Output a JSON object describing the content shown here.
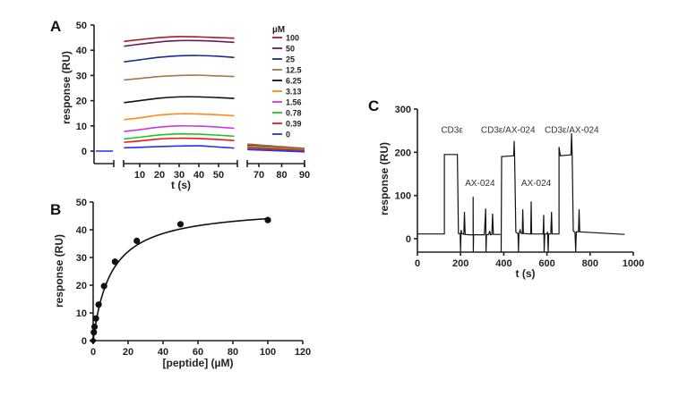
{
  "chart_data": [
    {
      "panel": "A",
      "type": "line",
      "title": "",
      "xlabel": "t (s)",
      "ylabel": "response (RU)",
      "ylim": [
        -5,
        50
      ],
      "yticks": [
        0,
        10,
        20,
        30,
        40,
        50
      ],
      "xticks": [
        10,
        20,
        30,
        40,
        50,
        70,
        80,
        90
      ],
      "legend_title": "µM",
      "legend_position": "top-right",
      "series": [
        {
          "name": "100",
          "color": "#b01828",
          "assoc": [
            [
              2,
              43.5
            ],
            [
              10,
              44.2
            ],
            [
              20,
              45.0
            ],
            [
              30,
              45.4
            ],
            [
              40,
              45.3
            ],
            [
              50,
              45.0
            ],
            [
              58,
              44.8
            ]
          ],
          "dissoc": [
            [
              65,
              2.6
            ],
            [
              90,
              1.0
            ]
          ]
        },
        {
          "name": "50",
          "color": "#6a1a5e",
          "assoc": [
            [
              2,
              41.6
            ],
            [
              10,
              42.4
            ],
            [
              20,
              43.3
            ],
            [
              30,
              43.8
            ],
            [
              40,
              43.8
            ],
            [
              50,
              43.5
            ],
            [
              58,
              43.1
            ]
          ],
          "dissoc": [
            [
              65,
              2.5
            ],
            [
              90,
              0.9
            ]
          ]
        },
        {
          "name": "25",
          "color": "#1c2a96",
          "assoc": [
            [
              2,
              35.4
            ],
            [
              10,
              36.2
            ],
            [
              20,
              37.2
            ],
            [
              30,
              37.8
            ],
            [
              40,
              37.9
            ],
            [
              50,
              37.6
            ],
            [
              58,
              37.1
            ]
          ],
          "dissoc": [
            [
              65,
              2.3
            ],
            [
              90,
              0.8
            ]
          ]
        },
        {
          "name": "12.5",
          "color": "#a07a44",
          "assoc": [
            [
              2,
              28.2
            ],
            [
              10,
              28.8
            ],
            [
              20,
              29.6
            ],
            [
              30,
              30.0
            ],
            [
              40,
              30.1
            ],
            [
              50,
              29.8
            ],
            [
              58,
              29.6
            ]
          ],
          "dissoc": [
            [
              65,
              2.8
            ],
            [
              90,
              1.1
            ]
          ]
        },
        {
          "name": "6.25",
          "color": "#111111",
          "assoc": [
            [
              2,
              19.2
            ],
            [
              10,
              20.0
            ],
            [
              20,
              21.0
            ],
            [
              30,
              21.5
            ],
            [
              40,
              21.5
            ],
            [
              50,
              21.2
            ],
            [
              58,
              20.9
            ]
          ],
          "dissoc": [
            [
              65,
              2.2
            ],
            [
              90,
              0.8
            ]
          ]
        },
        {
          "name": "3.13",
          "color": "#ff8a1c",
          "assoc": [
            [
              2,
              12.5
            ],
            [
              10,
              13.2
            ],
            [
              20,
              14.3
            ],
            [
              30,
              14.8
            ],
            [
              40,
              14.7
            ],
            [
              50,
              14.4
            ],
            [
              58,
              14.0
            ]
          ],
          "dissoc": [
            [
              65,
              2.0
            ],
            [
              90,
              0.7
            ]
          ]
        },
        {
          "name": "1.56",
          "color": "#c83ae0",
          "assoc": [
            [
              2,
              7.8
            ],
            [
              10,
              8.5
            ],
            [
              20,
              9.5
            ],
            [
              30,
              10.0
            ],
            [
              40,
              9.9
            ],
            [
              50,
              9.5
            ],
            [
              58,
              9.0
            ]
          ],
          "dissoc": [
            [
              65,
              1.7
            ],
            [
              90,
              0.5
            ]
          ]
        },
        {
          "name": "0.78",
          "color": "#1ec81e",
          "assoc": [
            [
              2,
              4.8
            ],
            [
              10,
              5.5
            ],
            [
              20,
              6.4
            ],
            [
              30,
              6.8
            ],
            [
              40,
              6.7
            ],
            [
              50,
              6.3
            ],
            [
              58,
              5.9
            ]
          ],
          "dissoc": [
            [
              65,
              1.5
            ],
            [
              90,
              0.4
            ]
          ]
        },
        {
          "name": "0.39",
          "color": "#ee1616",
          "assoc": [
            [
              2,
              3.5
            ],
            [
              10,
              4.0
            ],
            [
              20,
              4.8
            ],
            [
              30,
              5.1
            ],
            [
              40,
              5.0
            ],
            [
              50,
              4.6
            ],
            [
              58,
              4.2
            ]
          ],
          "dissoc": [
            [
              65,
              1.2
            ],
            [
              90,
              0.2
            ]
          ]
        },
        {
          "name": "0",
          "color": "#1a36ee",
          "assoc": [
            [
              2,
              1.3
            ],
            [
              10,
              1.5
            ],
            [
              20,
              1.8
            ],
            [
              30,
              2.0
            ],
            [
              40,
              2.1
            ],
            [
              50,
              1.6
            ],
            [
              58,
              1.2
            ]
          ],
          "dissoc": [
            [
              65,
              0.6
            ],
            [
              90,
              -0.3
            ]
          ],
          "baseline": 0
        }
      ]
    },
    {
      "panel": "B",
      "type": "scatter",
      "title": "",
      "xlabel": "[peptide] (µM)",
      "ylabel": "response (RU)",
      "xlim": [
        0,
        120
      ],
      "ylim": [
        0,
        50
      ],
      "xticks": [
        0,
        20,
        40,
        60,
        80,
        100,
        120
      ],
      "yticks": [
        0,
        10,
        20,
        30,
        40,
        50
      ],
      "points": [
        [
          0,
          0
        ],
        [
          0.39,
          3
        ],
        [
          0.78,
          5
        ],
        [
          1.56,
          8
        ],
        [
          3.13,
          13
        ],
        [
          6.25,
          19.7
        ],
        [
          12.5,
          28.5
        ],
        [
          25,
          36
        ],
        [
          50,
          42
        ],
        [
          100,
          43.5
        ]
      ],
      "fit": {
        "model": "one-site binding",
        "Rmax": 48.5,
        "KD": 10.2
      }
    },
    {
      "panel": "C",
      "type": "line",
      "title": "",
      "xlabel": "t (s)",
      "ylabel": "response (RU)",
      "xlim": [
        0,
        1000
      ],
      "ylim": [
        -30,
        300
      ],
      "xticks": [
        0,
        200,
        400,
        600,
        800,
        1000
      ],
      "yticks": [
        0,
        100,
        200,
        300
      ],
      "annotations": [
        {
          "text": "CD3ε",
          "x": 160,
          "y": 245
        },
        {
          "text": "AX-024",
          "x": 290,
          "y": 122
        },
        {
          "text": "CD3ε/AX-024",
          "x": 420,
          "y": 245
        },
        {
          "text": "AX-024",
          "x": 550,
          "y": 122
        },
        {
          "text": "CD3ε/AX-024",
          "x": 715,
          "y": 245
        }
      ],
      "trace": [
        [
          0,
          11
        ],
        [
          125,
          11
        ],
        [
          125,
          195
        ],
        [
          185,
          195
        ],
        [
          190,
          12
        ],
        [
          198,
          12
        ],
        [
          200,
          -30
        ],
        [
          202,
          20
        ],
        [
          206,
          12
        ],
        [
          215,
          10
        ],
        [
          218,
          62
        ],
        [
          221,
          10
        ],
        [
          240,
          9
        ],
        [
          258,
          9
        ],
        [
          258,
          97
        ],
        [
          259,
          -30
        ],
        [
          260,
          9
        ],
        [
          310,
          9
        ],
        [
          316,
          70
        ],
        [
          318,
          -30
        ],
        [
          320,
          9
        ],
        [
          330,
          10
        ],
        [
          335,
          18
        ],
        [
          338,
          9
        ],
        [
          345,
          10
        ],
        [
          348,
          58
        ],
        [
          352,
          10
        ],
        [
          388,
          10
        ],
        [
          388,
          -30
        ],
        [
          390,
          190
        ],
        [
          446,
          192
        ],
        [
          448,
          226
        ],
        [
          450,
          190
        ],
        [
          456,
          15
        ],
        [
          466,
          12
        ],
        [
          468,
          -30
        ],
        [
          470,
          12
        ],
        [
          476,
          20
        ],
        [
          480,
          12
        ],
        [
          486,
          12
        ],
        [
          488,
          68
        ],
        [
          491,
          12
        ],
        [
          525,
          11
        ],
        [
          527,
          86
        ],
        [
          529,
          11
        ],
        [
          582,
          11
        ],
        [
          585,
          55
        ],
        [
          587,
          -30
        ],
        [
          590,
          11
        ],
        [
          600,
          11
        ],
        [
          603,
          16
        ],
        [
          606,
          -30
        ],
        [
          608,
          11
        ],
        [
          618,
          11
        ],
        [
          621,
          62
        ],
        [
          624,
          11
        ],
        [
          656,
          11
        ],
        [
          656,
          212
        ],
        [
          662,
          192
        ],
        [
          711,
          194
        ],
        [
          714,
          244
        ],
        [
          717,
          192
        ],
        [
          722,
          18
        ],
        [
          730,
          15
        ],
        [
          733,
          -30
        ],
        [
          736,
          16
        ],
        [
          746,
          16
        ],
        [
          749,
          68
        ],
        [
          752,
          16
        ],
        [
          960,
          10
        ]
      ]
    }
  ],
  "panels": {
    "a_label": "A",
    "b_label": "B",
    "c_label": "C"
  }
}
